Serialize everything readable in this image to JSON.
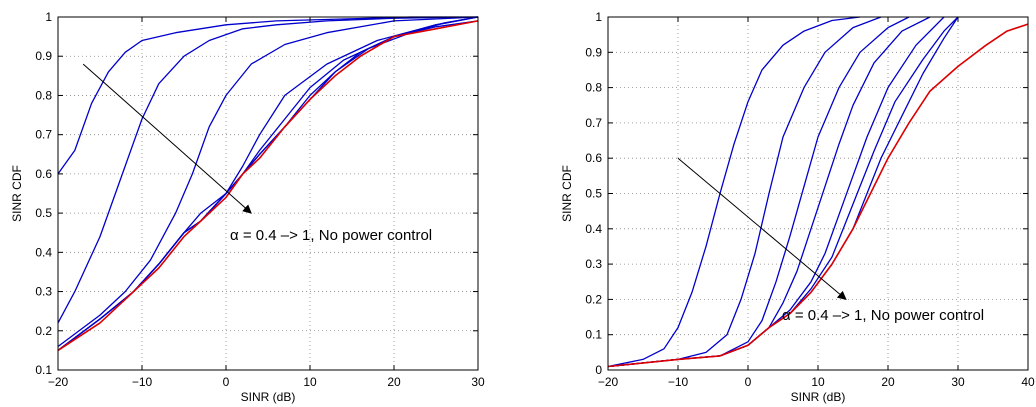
{
  "chart_data": [
    {
      "type": "line",
      "xlabel": "SINR (dB)",
      "ylabel": "SINR CDF",
      "xlim": [
        -20,
        30
      ],
      "ylim": [
        0.1,
        1
      ],
      "xticks": [
        -20,
        -10,
        0,
        10,
        20,
        30
      ],
      "xtick_labels": [
        "−20",
        "−10",
        "0",
        "10",
        "20",
        "30"
      ],
      "yticks": [
        0.1,
        0.2,
        0.3,
        0.4,
        0.5,
        0.6,
        0.7,
        0.8,
        0.9,
        1
      ],
      "ytick_labels": [
        "0.1",
        "0.2",
        "0.3",
        "0.4",
        "0.5",
        "0.6",
        "0.7",
        "0.8",
        "0.9",
        "1"
      ],
      "grid": true,
      "annotation": "α = 0.4 –> 1, No power control",
      "arrow": {
        "from": [
          -17,
          0.88
        ],
        "to": [
          3,
          0.5
        ]
      },
      "series": [
        {
          "color": "#0000cc",
          "x": [
            -20,
            -18,
            -16,
            -14,
            -12,
            -10,
            -6,
            0,
            6,
            14,
            22,
            30
          ],
          "y": [
            0.6,
            0.66,
            0.78,
            0.86,
            0.91,
            0.94,
            0.96,
            0.98,
            0.99,
            0.995,
            1,
            1
          ]
        },
        {
          "color": "#0000cc",
          "x": [
            -20,
            -18,
            -15,
            -12,
            -10,
            -8,
            -5,
            -2,
            2,
            6,
            12,
            20,
            30
          ],
          "y": [
            0.22,
            0.3,
            0.44,
            0.62,
            0.74,
            0.83,
            0.9,
            0.94,
            0.97,
            0.98,
            0.99,
            0.997,
            1
          ]
        },
        {
          "color": "#0000cc",
          "x": [
            -20,
            -15,
            -12,
            -9,
            -6,
            -4,
            -2,
            0,
            3,
            7,
            12,
            20,
            30
          ],
          "y": [
            0.16,
            0.24,
            0.3,
            0.38,
            0.5,
            0.6,
            0.72,
            0.8,
            0.88,
            0.93,
            0.96,
            0.99,
            1
          ]
        },
        {
          "color": "#0000cc",
          "x": [
            -20,
            -15,
            -11,
            -8,
            -5,
            -3,
            0,
            2,
            4,
            7,
            12,
            18,
            25,
            30
          ],
          "y": [
            0.15,
            0.23,
            0.3,
            0.37,
            0.45,
            0.5,
            0.55,
            0.62,
            0.7,
            0.8,
            0.88,
            0.94,
            0.98,
            1
          ]
        },
        {
          "color": "#0000cc",
          "x": [
            -20,
            -15,
            -11,
            -8,
            -5,
            -3,
            0,
            2,
            4,
            7,
            10,
            14,
            20,
            25,
            30
          ],
          "y": [
            0.15,
            0.23,
            0.3,
            0.37,
            0.45,
            0.48,
            0.55,
            0.6,
            0.66,
            0.74,
            0.82,
            0.89,
            0.95,
            0.98,
            1
          ]
        },
        {
          "color": "#0000cc",
          "x": [
            -20,
            -15,
            -11,
            -8,
            -5,
            -3,
            0,
            2,
            4,
            7,
            10,
            13,
            17,
            22,
            26,
            30
          ],
          "y": [
            0.15,
            0.23,
            0.3,
            0.37,
            0.45,
            0.48,
            0.55,
            0.6,
            0.65,
            0.72,
            0.8,
            0.86,
            0.92,
            0.96,
            0.985,
            1
          ]
        },
        {
          "color": "#0000cc",
          "x": [
            -20,
            -15,
            -11,
            -8,
            -5,
            -3,
            0,
            2,
            4,
            7,
            10,
            13,
            16,
            20,
            25,
            30
          ],
          "y": [
            0.15,
            0.23,
            0.3,
            0.37,
            0.45,
            0.48,
            0.55,
            0.6,
            0.65,
            0.72,
            0.79,
            0.86,
            0.91,
            0.95,
            0.975,
            0.99
          ]
        },
        {
          "color": "#dd0000",
          "x": [
            -20,
            -15,
            -11,
            -8,
            -5,
            -3,
            0,
            2,
            4,
            7,
            10,
            13,
            16,
            20,
            25,
            30
          ],
          "y": [
            0.15,
            0.22,
            0.3,
            0.36,
            0.44,
            0.48,
            0.54,
            0.6,
            0.64,
            0.72,
            0.79,
            0.85,
            0.9,
            0.95,
            0.97,
            0.99
          ]
        }
      ]
    },
    {
      "type": "line",
      "xlabel": "SINR (dB)",
      "ylabel": "SINR CDF",
      "xlim": [
        -20,
        40
      ],
      "ylim": [
        0,
        1
      ],
      "xticks": [
        -20,
        -10,
        0,
        10,
        20,
        30,
        40
      ],
      "xtick_labels": [
        "−20",
        "−10",
        "0",
        "10",
        "20",
        "30",
        "40"
      ],
      "yticks": [
        0,
        0.1,
        0.2,
        0.3,
        0.4,
        0.5,
        0.6,
        0.7,
        0.8,
        0.9,
        1
      ],
      "ytick_labels": [
        "0",
        "0.1",
        "0.2",
        "0.3",
        "0.4",
        "0.5",
        "0.6",
        "0.7",
        "0.8",
        "0.9",
        "1"
      ],
      "grid": true,
      "annotation": "α = 0.4 –> 1, No power control",
      "arrow": {
        "from": [
          -10,
          0.6
        ],
        "to": [
          14,
          0.2
        ]
      },
      "series": [
        {
          "color": "#0000cc",
          "x": [
            -20,
            -15,
            -12,
            -10,
            -8,
            -6,
            -4,
            -2,
            0,
            2,
            5,
            8,
            12,
            16
          ],
          "y": [
            0.01,
            0.03,
            0.06,
            0.12,
            0.22,
            0.35,
            0.5,
            0.64,
            0.76,
            0.85,
            0.92,
            0.96,
            0.99,
            1
          ]
        },
        {
          "color": "#0000cc",
          "x": [
            -20,
            -10,
            -6,
            -3,
            -1,
            1,
            3,
            5,
            8,
            11,
            15,
            19
          ],
          "y": [
            0.01,
            0.03,
            0.05,
            0.1,
            0.2,
            0.33,
            0.5,
            0.66,
            0.8,
            0.9,
            0.97,
            1
          ]
        },
        {
          "color": "#0000cc",
          "x": [
            -20,
            -10,
            -4,
            0,
            2,
            4,
            6,
            8,
            10,
            13,
            16,
            20,
            23
          ],
          "y": [
            0.01,
            0.03,
            0.04,
            0.08,
            0.14,
            0.25,
            0.38,
            0.52,
            0.66,
            0.8,
            0.9,
            0.97,
            1
          ]
        },
        {
          "color": "#0000cc",
          "x": [
            -20,
            -10,
            -4,
            0,
            3,
            5,
            7,
            9,
            11,
            13,
            15,
            18,
            22,
            26
          ],
          "y": [
            0.01,
            0.03,
            0.04,
            0.07,
            0.12,
            0.19,
            0.28,
            0.4,
            0.52,
            0.64,
            0.75,
            0.87,
            0.96,
            1
          ]
        },
        {
          "color": "#0000cc",
          "x": [
            -20,
            -10,
            -4,
            0,
            3,
            6,
            9,
            11,
            13,
            15,
            17,
            20,
            24,
            28
          ],
          "y": [
            0.01,
            0.03,
            0.04,
            0.07,
            0.12,
            0.17,
            0.25,
            0.33,
            0.44,
            0.55,
            0.66,
            0.8,
            0.92,
            1
          ]
        },
        {
          "color": "#0000cc",
          "x": [
            -20,
            -10,
            -4,
            0,
            3,
            6,
            9,
            12,
            14,
            16,
            18,
            21,
            25,
            28,
            30
          ],
          "y": [
            0.01,
            0.03,
            0.04,
            0.07,
            0.12,
            0.16,
            0.23,
            0.32,
            0.42,
            0.52,
            0.62,
            0.76,
            0.88,
            0.96,
            1
          ]
        },
        {
          "color": "#0000cc",
          "x": [
            -20,
            -10,
            -4,
            0,
            3,
            6,
            9,
            12,
            15,
            17,
            19,
            22,
            25,
            28,
            30
          ],
          "y": [
            0.01,
            0.03,
            0.04,
            0.07,
            0.12,
            0.16,
            0.22,
            0.3,
            0.4,
            0.5,
            0.6,
            0.72,
            0.84,
            0.94,
            1
          ]
        },
        {
          "color": "#dd0000",
          "x": [
            -20,
            -10,
            -4,
            0,
            3,
            6,
            9,
            12,
            15,
            18,
            20,
            23,
            26,
            30,
            34,
            37,
            40
          ],
          "y": [
            0.01,
            0.03,
            0.04,
            0.07,
            0.12,
            0.16,
            0.22,
            0.3,
            0.4,
            0.52,
            0.6,
            0.7,
            0.79,
            0.86,
            0.92,
            0.96,
            0.98
          ]
        }
      ]
    }
  ]
}
